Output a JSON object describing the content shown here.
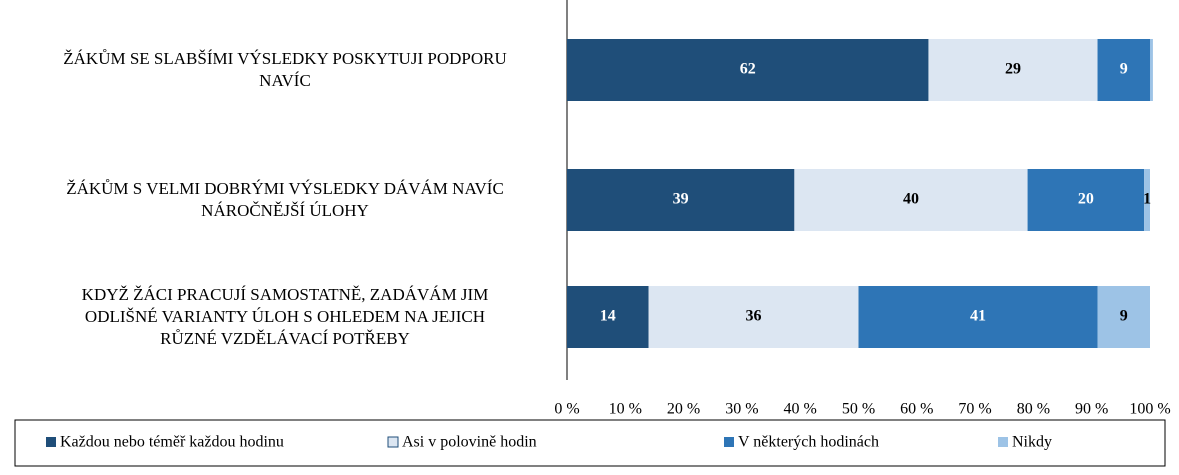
{
  "chart_data": {
    "type": "stacked-barh",
    "categories": [
      "ŽÁKŮM SE SLABŠÍMI VÝSLEDKY POSKYTUJI PODPORU\nNAVÍC",
      "ŽÁKŮM S VELMI DOBRÝMI VÝSLEDKY DÁVÁM NAVÍC\nNÁROČNĚJŠÍ ÚLOHY",
      "KDYŽ ŽÁCI PRACUJÍ SAMOSTATNĚ, ZADÁVÁM JIM\nODLIŠNÉ VARIANTY ÚLOH S OHLEDEM NA JEJICH\nRŮZNÉ VZDĚLÁVACÍ POTŘEBY"
    ],
    "series": [
      {
        "name": "Každou nebo téměř každou hodinu",
        "color": "#1f4e79",
        "values": [
          62,
          39,
          14
        ]
      },
      {
        "name": "Asi v polovině hodin",
        "color": "#dce6f2",
        "values": [
          29,
          40,
          36
        ]
      },
      {
        "name": "V některých hodinách",
        "color": "#2e75b6",
        "values": [
          9,
          20,
          41
        ]
      },
      {
        "name": "Nikdy",
        "color": "#9dc3e6",
        "values": [
          0.5,
          1,
          9
        ],
        "value_labels": [
          null,
          "1",
          "9"
        ]
      }
    ],
    "xlim": [
      0,
      100
    ],
    "xticks": [
      {
        "value": 0,
        "label": "0 %"
      },
      {
        "value": 10,
        "label": "10 %"
      },
      {
        "value": 20,
        "label": "20 %"
      },
      {
        "value": 30,
        "label": "30 %"
      },
      {
        "value": 40,
        "label": "40 %"
      },
      {
        "value": 50,
        "label": "50 %"
      },
      {
        "value": 60,
        "label": "60 %"
      },
      {
        "value": 70,
        "label": "70 %"
      },
      {
        "value": 80,
        "label": "80 %"
      },
      {
        "value": 90,
        "label": "90 %"
      },
      {
        "value": 100,
        "label": "100 %"
      }
    ],
    "legend": "bottom"
  }
}
